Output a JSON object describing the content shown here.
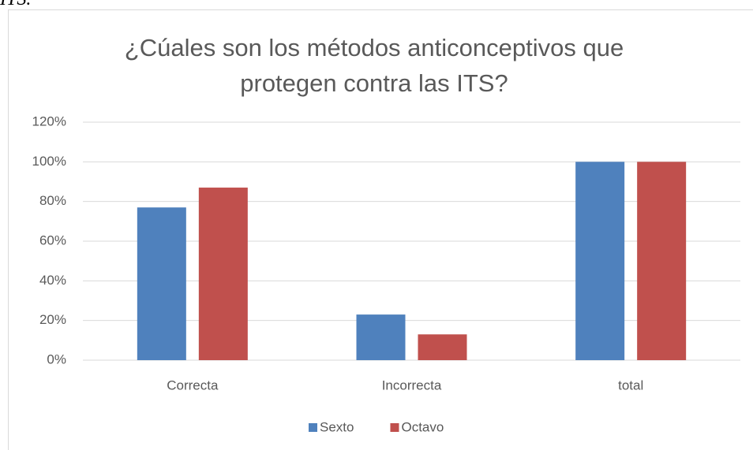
{
  "page_caption": "ITS.",
  "chart_data": {
    "type": "bar",
    "title": "¿Cúales son los métodos anticonceptivos que protegen contra las ITS?",
    "categories": [
      "Correcta",
      "Incorrecta",
      "total"
    ],
    "series": [
      {
        "name": "Sexto",
        "color": "#4f81bd",
        "values": [
          77,
          23,
          100
        ]
      },
      {
        "name": "Octavo",
        "color": "#c0504d",
        "values": [
          87,
          13,
          100
        ]
      }
    ],
    "ylim": [
      0,
      120
    ],
    "yticks": [
      {
        "value": 0,
        "label": "0%"
      },
      {
        "value": 20,
        "label": "20%"
      },
      {
        "value": 40,
        "label": "40%"
      },
      {
        "value": 60,
        "label": "60%"
      },
      {
        "value": 80,
        "label": "80%"
      },
      {
        "value": 100,
        "label": "100%"
      },
      {
        "value": 120,
        "label": "120%"
      }
    ],
    "grid": true,
    "legend": "bottom"
  }
}
